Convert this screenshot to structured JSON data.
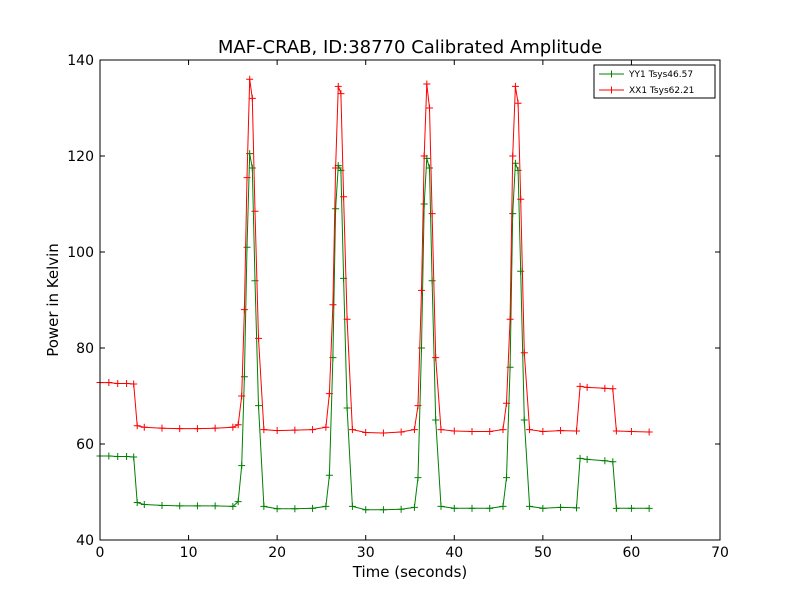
{
  "chart_data": {
    "type": "line",
    "title": "MAF-CRAB, ID:38770 Calibrated Amplitude",
    "xlabel": "Time (seconds)",
    "ylabel": "Power in Kelvin",
    "xlim": [
      0,
      70
    ],
    "ylim": [
      40,
      140
    ],
    "xticks": [
      "0",
      "10",
      "20",
      "30",
      "40",
      "50",
      "60",
      "70"
    ],
    "yticks": [
      "40",
      "60",
      "80",
      "100",
      "120",
      "140"
    ],
    "grid": false,
    "legend_position": "top-right",
    "marker": "plus",
    "series": [
      {
        "name": "YY1 Tsys46.57",
        "color": "#008000",
        "x": [
          0,
          1,
          2,
          3,
          3.8,
          4.2,
          5,
          7,
          9,
          11,
          13,
          15,
          15.6,
          16.0,
          16.3,
          16.6,
          16.9,
          17.2,
          17.5,
          17.9,
          18.5,
          20,
          22,
          24,
          25.5,
          25.9,
          26.3,
          26.6,
          26.9,
          27.2,
          27.5,
          27.9,
          28.5,
          30,
          32,
          34,
          35.5,
          35.9,
          36.3,
          36.6,
          36.9,
          37.2,
          37.5,
          37.9,
          38.5,
          40,
          42,
          44,
          45.5,
          45.9,
          46.3,
          46.6,
          46.9,
          47.2,
          47.5,
          47.9,
          48.5,
          50,
          52,
          53.8,
          54.2,
          55,
          57,
          57.9,
          58.3,
          60,
          62
        ],
        "y": [
          57.5,
          57.5,
          57.4,
          57.4,
          57.3,
          47.8,
          47.4,
          47.2,
          47.1,
          47.1,
          47.1,
          47.0,
          48.0,
          55.5,
          74.0,
          101.0,
          120.5,
          117.5,
          94.0,
          68.0,
          47.0,
          46.5,
          46.5,
          46.6,
          47.0,
          53.5,
          78.0,
          109.0,
          118.0,
          117.0,
          94.5,
          67.5,
          47.0,
          46.3,
          46.3,
          46.4,
          46.8,
          53.0,
          80.0,
          110.0,
          119.5,
          117.5,
          94.0,
          65.0,
          47.0,
          46.6,
          46.6,
          46.6,
          47.0,
          53.0,
          76.0,
          108.0,
          118.5,
          117.0,
          96.0,
          65.0,
          47.0,
          46.6,
          46.8,
          46.7,
          57.0,
          56.8,
          56.5,
          56.3,
          46.6,
          46.6,
          46.6
        ]
      },
      {
        "name": "XX1 Tsys62.21",
        "color": "#ff0000",
        "x": [
          0,
          1,
          2,
          3,
          3.8,
          4.2,
          5,
          7,
          9,
          11,
          13,
          15,
          15.6,
          16.0,
          16.3,
          16.6,
          16.9,
          17.2,
          17.5,
          17.9,
          18.5,
          20,
          22,
          24,
          25.5,
          25.9,
          26.3,
          26.6,
          26.9,
          27.2,
          27.5,
          27.9,
          28.5,
          30,
          32,
          34,
          35.5,
          35.9,
          36.3,
          36.6,
          36.9,
          37.2,
          37.5,
          37.9,
          38.5,
          40,
          42,
          44,
          45.5,
          45.9,
          46.3,
          46.6,
          46.9,
          47.2,
          47.5,
          47.9,
          48.5,
          50,
          52,
          53.8,
          54.2,
          55,
          57,
          57.9,
          58.3,
          60,
          62
        ],
        "y": [
          72.8,
          72.8,
          72.6,
          72.6,
          72.5,
          63.8,
          63.5,
          63.3,
          63.2,
          63.2,
          63.3,
          63.5,
          64.0,
          70.0,
          88.0,
          115.5,
          136.0,
          132.0,
          108.5,
          82.0,
          63.0,
          62.8,
          62.9,
          63.0,
          63.5,
          70.5,
          89.0,
          117.5,
          134.5,
          133.0,
          111.5,
          86.0,
          63.0,
          62.4,
          62.3,
          62.5,
          63.0,
          68.0,
          92.0,
          120.0,
          135.0,
          130.0,
          108.0,
          78.0,
          63.0,
          62.7,
          62.6,
          62.6,
          63.0,
          68.5,
          86.0,
          120.0,
          134.5,
          131.0,
          111.0,
          79.0,
          63.0,
          62.6,
          62.8,
          62.7,
          72.0,
          71.8,
          71.6,
          71.5,
          62.7,
          62.6,
          62.5
        ]
      }
    ]
  }
}
